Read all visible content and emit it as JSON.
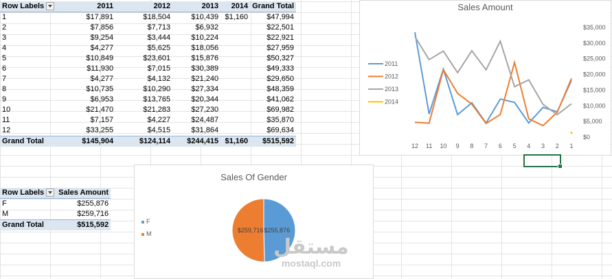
{
  "pivot_year": {
    "headers": [
      "Row Labels",
      "2011",
      "2012",
      "2013",
      "2014",
      "Grand Total"
    ],
    "rows": [
      [
        "1",
        "$17,891",
        "$18,504",
        "$10,439",
        "$1,160",
        "$47,994"
      ],
      [
        "2",
        "$7,856",
        "$7,713",
        "$6,932",
        "",
        "$22,501"
      ],
      [
        "3",
        "$9,254",
        "$3,444",
        "$10,224",
        "",
        "$22,921"
      ],
      [
        "4",
        "$4,277",
        "$5,625",
        "$18,056",
        "",
        "$27,959"
      ],
      [
        "5",
        "$10,849",
        "$23,601",
        "$15,876",
        "",
        "$50,327"
      ],
      [
        "6",
        "$11,930",
        "$7,015",
        "$30,389",
        "",
        "$49,333"
      ],
      [
        "7",
        "$4,277",
        "$4,132",
        "$21,240",
        "",
        "$29,650"
      ],
      [
        "8",
        "$10,735",
        "$10,290",
        "$27,334",
        "",
        "$48,359"
      ],
      [
        "9",
        "$6,953",
        "$13,765",
        "$20,344",
        "",
        "$41,062"
      ],
      [
        "10",
        "$21,470",
        "$21,283",
        "$27,230",
        "",
        "$69,982"
      ],
      [
        "11",
        "$7,157",
        "$4,227",
        "$24,487",
        "",
        "$35,870"
      ],
      [
        "12",
        "$33,255",
        "$4,515",
        "$31,864",
        "",
        "$69,634"
      ]
    ],
    "total": [
      "Grand Total",
      "$145,904",
      "$124,114",
      "$244,415",
      "$1,160",
      "$515,592"
    ]
  },
  "pivot_gender": {
    "headers": [
      "Row Labels",
      "Sales Amount"
    ],
    "rows": [
      [
        "F",
        "$255,876"
      ],
      [
        "M",
        "$259,716"
      ]
    ],
    "total": [
      "Grand Total",
      "$515,592"
    ]
  },
  "chart_data": [
    {
      "type": "line",
      "title": "Sales Amount",
      "categories": [
        "12",
        "11",
        "10",
        "9",
        "8",
        "7",
        "6",
        "5",
        "4",
        "3",
        "2",
        "1"
      ],
      "y_ticks": [
        "$35,000",
        "$30,000",
        "$25,000",
        "$20,000",
        "$15,000",
        "$10,000",
        "$5,000",
        "$0"
      ],
      "ylim": [
        0,
        35000
      ],
      "legend_position": "left",
      "series": [
        {
          "name": "2011",
          "color": "#5b9bd5",
          "values": [
            33255,
            7157,
            21470,
            6953,
            10735,
            4277,
            11930,
            10849,
            4277,
            9254,
            7856,
            17891
          ]
        },
        {
          "name": "2012",
          "color": "#ed7d31",
          "values": [
            4515,
            4227,
            21283,
            13765,
            10290,
            4132,
            7015,
            23601,
            5625,
            3444,
            7713,
            18504
          ]
        },
        {
          "name": "2013",
          "color": "#a5a5a5",
          "values": [
            31864,
            24487,
            27230,
            20344,
            27334,
            21240,
            30389,
            15876,
            18056,
            10224,
            6932,
            10439
          ]
        },
        {
          "name": "2014",
          "color": "#ffc000",
          "values": [
            null,
            null,
            null,
            null,
            null,
            null,
            null,
            null,
            null,
            null,
            null,
            1160
          ]
        }
      ]
    },
    {
      "type": "pie",
      "title": "Sales Of Gender",
      "legend_position": "left",
      "slices": [
        {
          "name": "F",
          "value": 255876,
          "label": "$255,876",
          "color": "#5b9bd5"
        },
        {
          "name": "M",
          "value": 259716,
          "label": "$259,716",
          "color": "#ed7d31"
        }
      ]
    }
  ],
  "watermark": {
    "arabic": "مستقل",
    "latin": "mostaql.com"
  }
}
